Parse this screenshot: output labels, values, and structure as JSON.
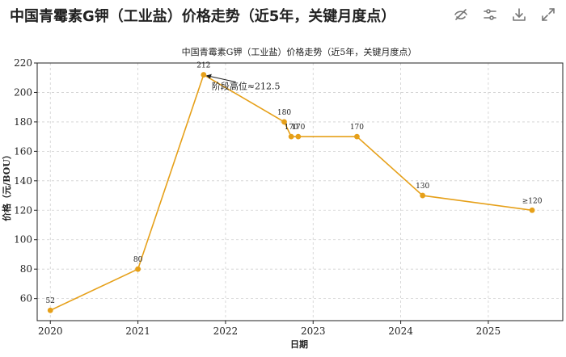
{
  "header": {
    "title": "中国青霉素G钾（工业盐）价格走势（近5年，关键月度点）",
    "toolbar": [
      {
        "name": "hide-series-icon"
      },
      {
        "name": "settings-sliders-icon"
      },
      {
        "name": "download-icon"
      },
      {
        "name": "expand-icon"
      }
    ]
  },
  "colors": {
    "line": "#E6A019",
    "point": "#E6A019",
    "grid": "#cfcfcf",
    "axis": "#222222"
  },
  "chart_data": {
    "type": "line",
    "title": "中国青霉素G钾（工业盐）价格走势（近5年，关键月度点）",
    "xlabel": "日期",
    "ylabel": "价格（元/BOU）",
    "xlim": [
      2019.85,
      2025.85
    ],
    "ylim": [
      45,
      220
    ],
    "xticks": [
      2020,
      2021,
      2022,
      2023,
      2024,
      2025
    ],
    "yticks": [
      60,
      80,
      100,
      120,
      140,
      160,
      180,
      200,
      220
    ],
    "grid": true,
    "series": [
      {
        "x": [
          2020.0,
          2021.0,
          2021.75,
          2022.67,
          2022.75,
          2022.83,
          2023.5,
          2024.25,
          2025.5
        ],
        "y": [
          52,
          80,
          212,
          180,
          170,
          170,
          170,
          130,
          120
        ],
        "labels": [
          "52",
          "80",
          "212",
          "180",
          "170",
          "170",
          "170",
          "130",
          "≥120"
        ]
      }
    ],
    "annotations": [
      {
        "text": "阶段高位≈212.5",
        "x": 2021.75,
        "y": 212
      }
    ]
  }
}
